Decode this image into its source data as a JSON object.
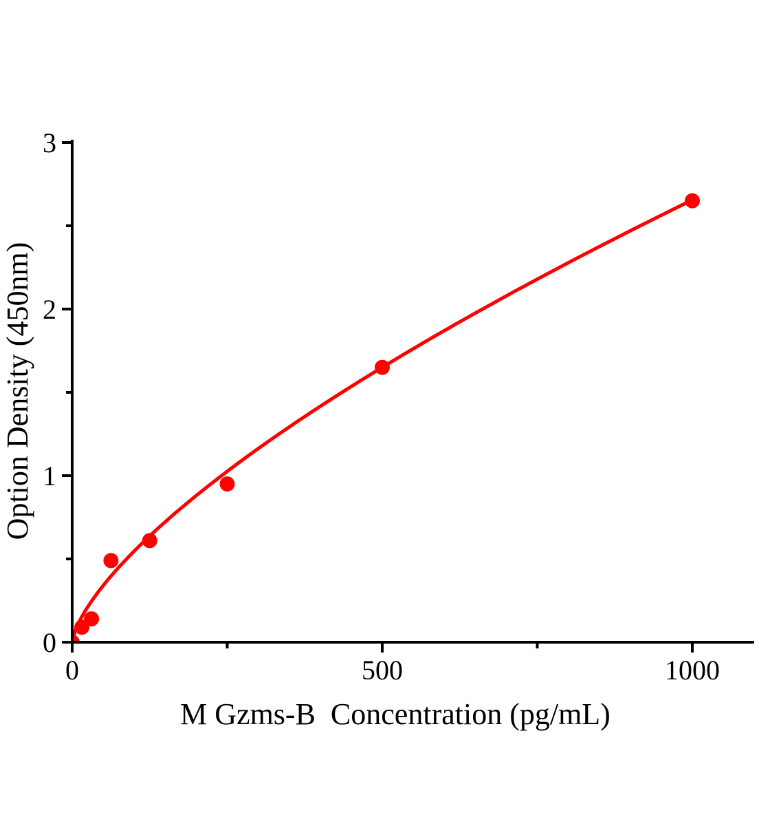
{
  "figure": {
    "background": "#ffffff"
  },
  "chart_data": {
    "type": "scatter",
    "title": "",
    "xlabel": "M Gzms-B  Concentration (pg/mL)",
    "ylabel": "Option Density (450nm)",
    "x": [
      0,
      15.6,
      31.2,
      62.5,
      125,
      250,
      500,
      1000
    ],
    "y": [
      0,
      0.09,
      0.14,
      0.49,
      0.61,
      0.95,
      1.65,
      2.65
    ],
    "fit_curve": {
      "type": "power",
      "a": 0.02323,
      "b": 0.686
    },
    "xlim": [
      0,
      1000
    ],
    "ylim": [
      0,
      3
    ],
    "x_axis": {
      "major_ticks": [
        {
          "value": 0,
          "label": "0"
        },
        {
          "value": 500,
          "label": "500"
        },
        {
          "value": 1000,
          "label": "1000"
        }
      ],
      "minor_ticks": [
        250,
        750
      ]
    },
    "y_axis": {
      "major_ticks": [
        {
          "value": 0,
          "label": "0"
        },
        {
          "value": 1,
          "label": "1"
        },
        {
          "value": 2,
          "label": "2"
        },
        {
          "value": 3,
          "label": "3"
        }
      ],
      "minor_ticks": [
        0.5,
        1.5,
        2.5
      ]
    },
    "grid": false,
    "legend": null,
    "marker_color": "#fe0202",
    "line_color": "#fe0202",
    "axis_color": "#000000",
    "text_color": "#000000"
  }
}
